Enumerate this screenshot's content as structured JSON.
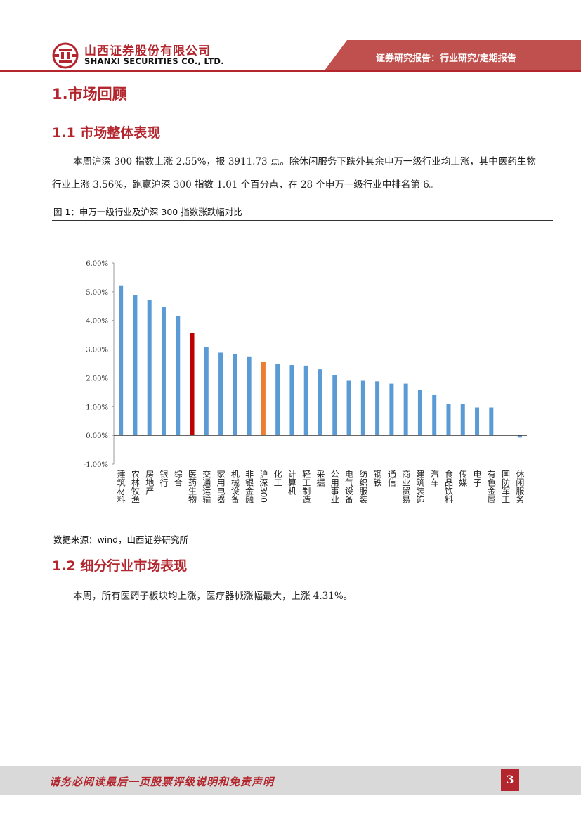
{
  "header": {
    "company_cn": "山西证券股份有限公司",
    "company_en": "SHANXI SECURITIES CO., LTD.",
    "banner": "证券研究报告：行业研究/定期报告"
  },
  "section1": {
    "title": "1.市场回顾"
  },
  "section1_1": {
    "title": "1.1 市场整体表现",
    "paragraph": "本周沪深 300 指数上涨 2.55%，报 3911.73 点。除休闲服务下跌外其余申万一级行业均上涨，其中医药生物行业上涨 3.56%，跑赢沪深 300 指数 1.01 个百分点，在 28 个申万一级行业中排名第 6。"
  },
  "figure1": {
    "caption": "图 1：申万一级行业及沪深 300 指数涨跌幅对比",
    "source": "数据来源：wind，山西证券研究所"
  },
  "chart_data": {
    "type": "bar",
    "title": "申万一级行业及沪深 300 指数涨跌幅对比",
    "xlabel": "",
    "ylabel": "",
    "ylim": [
      -1.0,
      6.0
    ],
    "yticks": [
      "-1.00%",
      "0.00%",
      "1.00%",
      "2.00%",
      "3.00%",
      "4.00%",
      "5.00%",
      "6.00%"
    ],
    "categories": [
      "建筑材料",
      "农林牧渔",
      "房地产",
      "银行",
      "综合",
      "医药生物",
      "交通运输",
      "家用电器",
      "机械设备",
      "非银金融",
      "沪深300",
      "化工",
      "计算机",
      "轻工制造",
      "采掘",
      "公用事业",
      "电气设备",
      "纺织服装",
      "钢铁",
      "通信",
      "商业贸易",
      "建筑装饰",
      "汽车",
      "食品饮料",
      "传媒",
      "电子",
      "有色金属",
      "国防军工",
      "休闲服务"
    ],
    "values": [
      5.2,
      4.88,
      4.72,
      4.48,
      4.15,
      3.56,
      3.07,
      2.88,
      2.82,
      2.75,
      2.55,
      2.5,
      2.45,
      2.43,
      2.3,
      2.1,
      1.9,
      1.9,
      1.88,
      1.8,
      1.8,
      1.58,
      1.4,
      1.1,
      1.1,
      0.97,
      0.97,
      0.0,
      -0.08
    ],
    "colors": {
      "default": "#5b9bd5",
      "highlight": "#c00000",
      "benchmark": "#ed7d31"
    },
    "highlight_category": "医药生物",
    "benchmark_category": "沪深300"
  },
  "section1_2": {
    "title": "1.2 细分行业市场表现",
    "paragraph": "本周，所有医药子板块均上涨，医疗器械涨幅最大，上涨 4.31%。"
  },
  "footer": {
    "disclaimer": "请务必阅读最后一页股票评级说明和免责声明",
    "page_number": "3"
  }
}
